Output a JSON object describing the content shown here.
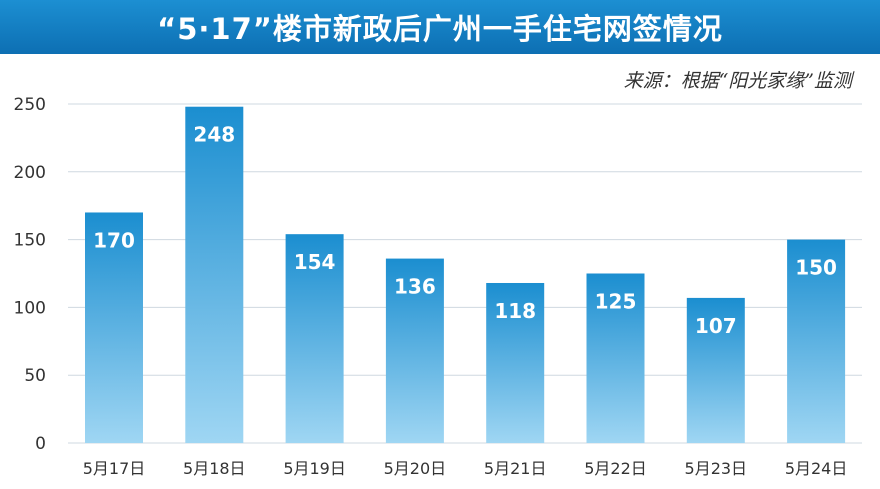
{
  "title": "“5·17”楼市新政后广州一手住宅网签情况",
  "source": "来源：根据“阳光家缘”监测",
  "colors": {
    "title_bg": "#1580c5",
    "bar_top": "#1b8ed0",
    "bar_bottom": "#9fd6f3",
    "grid": "#cfd8e0",
    "axis_text": "#333333",
    "label_text": "#ffffff"
  },
  "chart_data": {
    "type": "bar",
    "title": "“5·17”楼市新政后广州一手住宅网签情况",
    "categories": [
      "5月17日",
      "5月18日",
      "5月19日",
      "5月20日",
      "5月21日",
      "5月22日",
      "5月23日",
      "5月24日"
    ],
    "values": [
      170,
      248,
      154,
      136,
      118,
      125,
      107,
      150
    ],
    "data_labels": [
      "170",
      "248",
      "154",
      "136",
      "118",
      "125",
      "107",
      "150"
    ],
    "ylim": [
      0,
      250
    ],
    "yticks": [
      0,
      50,
      100,
      150,
      200,
      250
    ],
    "ytick_labels": [
      "0",
      "50",
      "100",
      "150",
      "200",
      "250"
    ],
    "grid": true,
    "legend": "none"
  }
}
